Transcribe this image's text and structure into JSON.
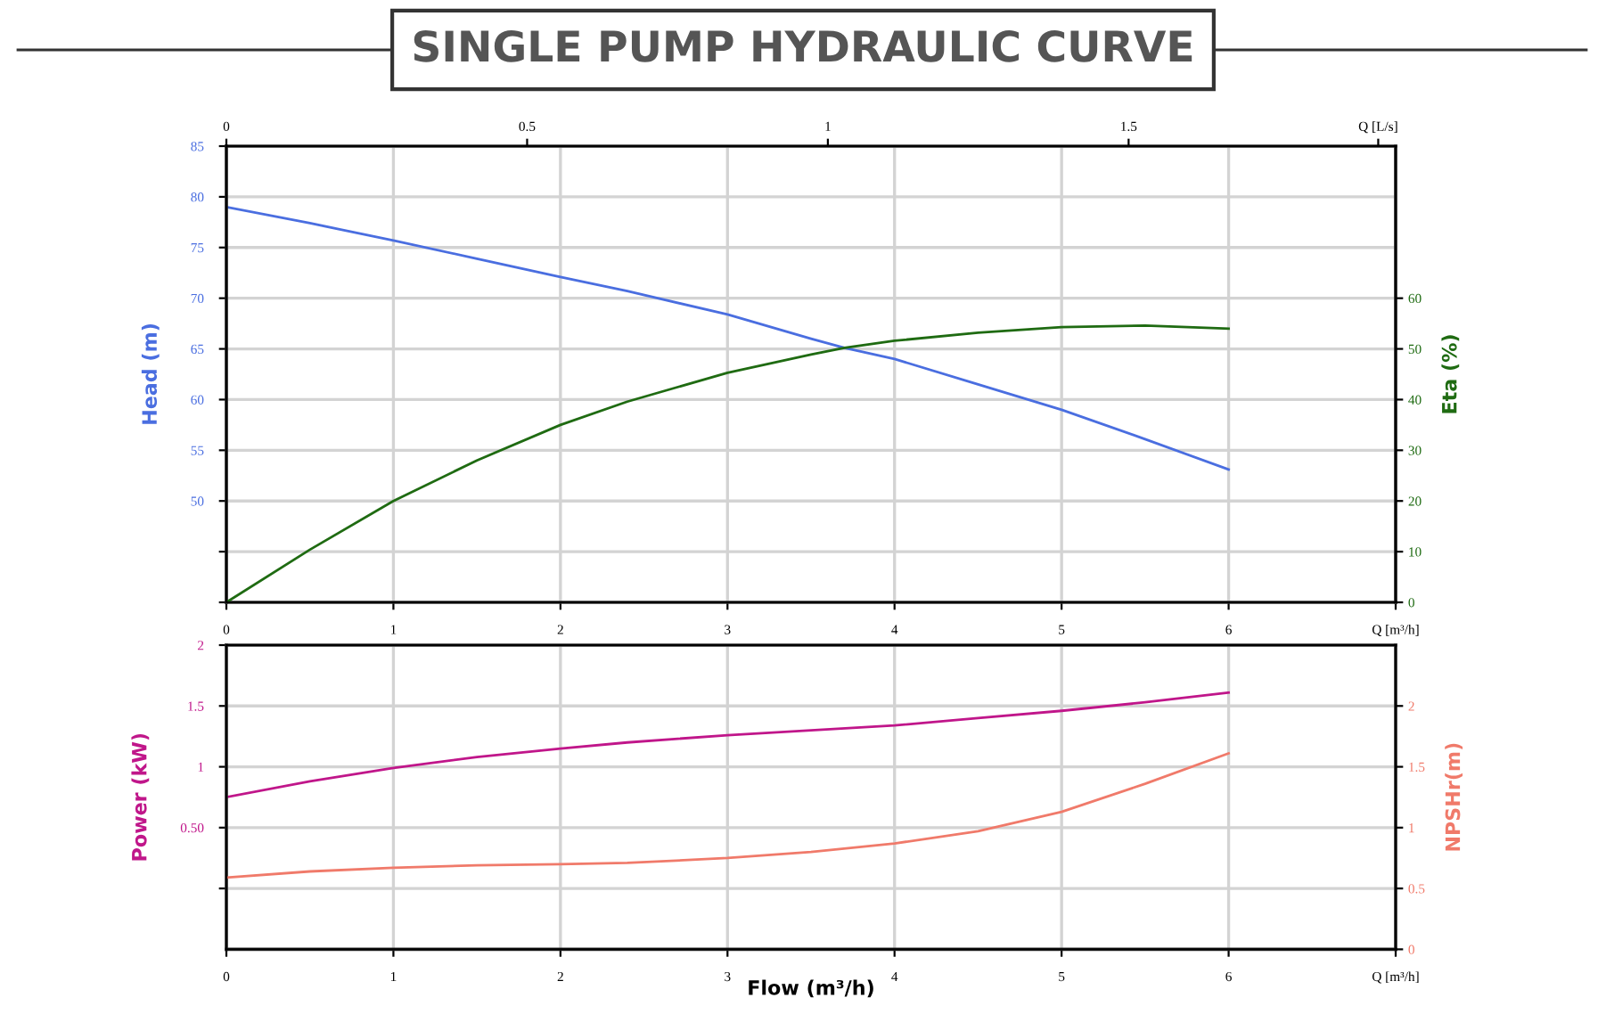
{
  "chart_data": [
    {
      "type": "line",
      "title": "SINGLE PUMP HYDRAULIC CURVE",
      "ylabel": "Head (m)",
      "y2label": "Eta (%)",
      "grid": true,
      "x": [
        0,
        0.5,
        1,
        1.5,
        2,
        2.4,
        3,
        3.5,
        3.7,
        4,
        4.5,
        5,
        5.5,
        6
      ],
      "xlim": [
        0,
        7
      ],
      "xticks": [
        0,
        1,
        2,
        3,
        4,
        5,
        6,
        {
          "value": 7,
          "label": "Q [m³/h]"
        }
      ],
      "x2lim": [
        0,
        1.944
      ],
      "x2ticks": [
        0,
        0.5,
        1,
        1.5,
        {
          "value": 1.915,
          "label": "Q [L/s]"
        }
      ],
      "ylim": [
        40,
        85
      ],
      "yticks": [
        {
          "value": 40,
          "label": null
        },
        {
          "value": 45,
          "label": null
        },
        50,
        55,
        60,
        65,
        70,
        75,
        80,
        85
      ],
      "y2lim": [
        0,
        90
      ],
      "y2ticks": [
        0,
        10,
        20,
        30,
        40,
        50,
        60
      ],
      "series": [
        {
          "color": "#4a6ee0",
          "values": [
            79.0,
            77.4,
            75.7,
            73.9,
            72.1,
            70.7,
            68.4,
            66.0,
            65.1,
            64.0,
            61.5,
            59.0,
            56.1,
            53.1
          ]
        },
        {
          "color": "#1f6b12",
          "axis": "y2",
          "values": [
            0,
            10.4,
            20.0,
            28.0,
            35.0,
            39.6,
            45.3,
            48.9,
            50.2,
            51.6,
            53.2,
            54.3,
            54.6,
            54.0
          ]
        }
      ]
    },
    {
      "type": "line",
      "xlabel": "Flow (m³/h)",
      "ylabel": "Power (kW)",
      "y2label": "NPSHr(m)",
      "grid": true,
      "x": [
        0,
        0.5,
        1,
        1.5,
        2,
        2.4,
        3,
        3.5,
        4,
        4.5,
        5,
        5.5,
        6
      ],
      "xlim": [
        0,
        7
      ],
      "xticks": [
        0,
        1,
        2,
        3,
        4,
        5,
        6,
        {
          "value": 7,
          "label": "Q [m³/h]"
        }
      ],
      "ylim": [
        -0.5,
        2
      ],
      "yticks": [
        {
          "value": 0,
          "label": null
        },
        {
          "value": 0.5,
          "label": "0.50"
        },
        1,
        1.5,
        2
      ],
      "y2lim": [
        0,
        2.5
      ],
      "y2ticks": [
        0,
        0.5,
        1,
        1.5,
        2
      ],
      "series": [
        {
          "color": "#c0168a",
          "values": [
            0.75,
            0.88,
            0.99,
            1.08,
            1.15,
            1.2,
            1.26,
            1.3,
            1.34,
            1.4,
            1.46,
            1.53,
            1.61
          ]
        },
        {
          "color": "#f07a6a",
          "axis": "y2",
          "values": [
            0.59,
            0.64,
            0.67,
            0.69,
            0.7,
            0.71,
            0.75,
            0.8,
            0.87,
            0.97,
            1.13,
            1.36,
            1.61
          ]
        }
      ]
    }
  ]
}
